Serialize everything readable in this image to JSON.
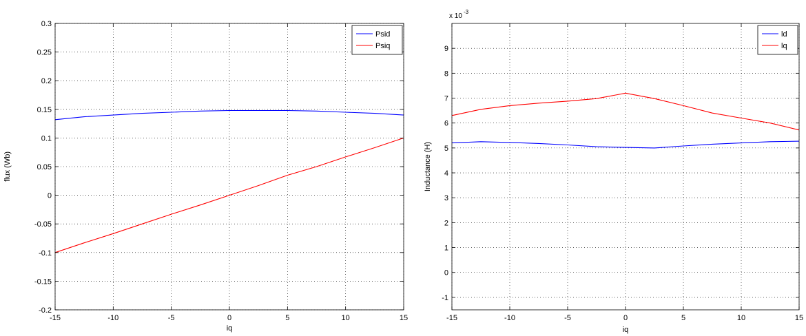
{
  "chart_data": [
    {
      "type": "line",
      "title": "",
      "xlabel": "iq",
      "ylabel": "flux (Wb)",
      "xlim": [
        -15,
        15
      ],
      "ylim": [
        -0.2,
        0.3
      ],
      "xticks": [
        -15,
        -10,
        -5,
        0,
        5,
        10,
        15
      ],
      "xtick_labels": [
        "-15",
        "-10",
        "-5",
        "0",
        "5",
        "10",
        "15"
      ],
      "yticks": [
        -0.2,
        -0.15,
        -0.1,
        -0.05,
        0,
        0.05,
        0.1,
        0.15,
        0.2,
        0.25,
        0.3
      ],
      "ytick_labels": [
        "-0.2",
        "-0.15",
        "-0.1",
        "-0.05",
        "0",
        "0.05",
        "0.1",
        "0.15",
        "0.2",
        "0.25",
        "0.3"
      ],
      "grid": true,
      "legend": "top-right",
      "x": [
        -15,
        -12.5,
        -10,
        -7.5,
        -5,
        -2.5,
        0,
        2.5,
        5,
        7.5,
        10,
        12.5,
        15
      ],
      "series": [
        {
          "name": "Psid",
          "color": "#0000ff",
          "values": [
            0.132,
            0.137,
            0.14,
            0.143,
            0.145,
            0.147,
            0.148,
            0.148,
            0.148,
            0.147,
            0.145,
            0.143,
            0.14
          ]
        },
        {
          "name": "Psiq",
          "color": "#ff0000",
          "values": [
            -0.1,
            -0.083,
            -0.067,
            -0.05,
            -0.033,
            -0.017,
            0.0,
            0.017,
            0.035,
            0.05,
            0.067,
            0.083,
            0.1
          ]
        }
      ]
    },
    {
      "type": "line",
      "title": "",
      "xlabel": "iq",
      "ylabel": "Inductance (H)",
      "scale_label": "x 10",
      "scale_exponent": "-3",
      "xlim": [
        -15,
        15
      ],
      "ylim": [
        -1.5,
        10
      ],
      "xticks": [
        -15,
        -10,
        -5,
        0,
        5,
        10,
        15
      ],
      "xtick_labels": [
        "-15",
        "-10",
        "-5",
        "0",
        "5",
        "10",
        "15"
      ],
      "yticks": [
        -1,
        0,
        1,
        2,
        3,
        4,
        5,
        6,
        7,
        8,
        9
      ],
      "ytick_labels": [
        "-1",
        "0",
        "1",
        "2",
        "3",
        "4",
        "5",
        "6",
        "7",
        "8",
        "9"
      ],
      "grid": true,
      "legend": "top-right",
      "x": [
        -15,
        -12.5,
        -10,
        -7.5,
        -5,
        -2.5,
        0,
        2.5,
        5,
        7.5,
        10,
        12.5,
        15
      ],
      "series": [
        {
          "name": "ld",
          "color": "#0000ff",
          "values": [
            5.2,
            5.25,
            5.22,
            5.18,
            5.12,
            5.05,
            5.02,
            5.0,
            5.08,
            5.15,
            5.2,
            5.25,
            5.27
          ]
        },
        {
          "name": "lq",
          "color": "#ff0000",
          "values": [
            6.3,
            6.55,
            6.7,
            6.8,
            6.88,
            6.98,
            7.2,
            6.98,
            6.7,
            6.4,
            6.2,
            6.0,
            5.72
          ]
        }
      ]
    }
  ]
}
